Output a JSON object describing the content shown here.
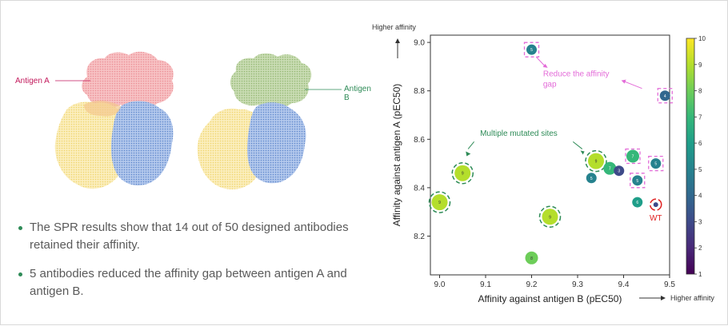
{
  "labels": {
    "antigen_a": "Antigen A",
    "antigen_b": "Antigen B"
  },
  "bullets": [
    "The SPR results show that 14 out of 50 designed antibodies retained their affinity.",
    "5 antibodies reduced the affinity gap between antigen A and antigen B."
  ],
  "colors": {
    "antigen_a": "#f4a3a8",
    "antigen_b": "#a9c98e",
    "chain_yellow": "#f7e08c",
    "chain_blue": "#6f98d8",
    "accent_pink": "#e36bd8",
    "accent_green": "#2e8b57",
    "wt_red": "#e02020"
  },
  "chart_data": {
    "type": "scatter",
    "xlabel": "Affinity against antigen B (pEC50)",
    "ylabel": "Affinity against antigen A (pEC50)",
    "x_arrow_label": "Higher affinity",
    "y_arrow_label": "Higher affinity",
    "xlim": [
      8.98,
      9.5
    ],
    "ylim": [
      8.04,
      9.03
    ],
    "xticks": [
      9.0,
      9.1,
      9.2,
      9.3,
      9.4,
      9.5
    ],
    "yticks": [
      8.2,
      8.4,
      8.6,
      8.8,
      9.0
    ],
    "colorbar": {
      "min": 1,
      "max": 10,
      "ticks": [
        1,
        2,
        3,
        4,
        5,
        6,
        7,
        8,
        9,
        10
      ],
      "colormap": "viridis"
    },
    "points": [
      {
        "x": 9.2,
        "y": 8.97,
        "value": 5,
        "marker": "pink-square"
      },
      {
        "x": 9.49,
        "y": 8.78,
        "value": 4,
        "marker": "pink-square"
      },
      {
        "x": 9.42,
        "y": 8.53,
        "value": 7,
        "marker": "pink-square"
      },
      {
        "x": 9.47,
        "y": 8.5,
        "value": 5,
        "marker": "pink-square"
      },
      {
        "x": 9.43,
        "y": 8.43,
        "value": 5,
        "marker": "pink-square"
      },
      {
        "x": 9.05,
        "y": 8.46,
        "value": 9,
        "marker": "green-circle"
      },
      {
        "x": 9.0,
        "y": 8.34,
        "value": 9,
        "marker": "green-circle"
      },
      {
        "x": 9.24,
        "y": 8.28,
        "value": 9,
        "marker": "green-circle"
      },
      {
        "x": 9.34,
        "y": 8.51,
        "value": 9,
        "marker": "green-circle"
      },
      {
        "x": 9.37,
        "y": 8.48,
        "value": 7,
        "marker": "none"
      },
      {
        "x": 9.39,
        "y": 8.47,
        "value": 3,
        "marker": "none"
      },
      {
        "x": 9.33,
        "y": 8.44,
        "value": 5,
        "marker": "none"
      },
      {
        "x": 9.43,
        "y": 8.34,
        "value": 6,
        "marker": "none"
      },
      {
        "x": 9.2,
        "y": 8.11,
        "value": 8,
        "marker": "none"
      },
      {
        "x": 9.47,
        "y": 8.33,
        "value": 3,
        "marker": "wt"
      }
    ],
    "annotations": {
      "reduce_gap": "Reduce the affinity\ngap",
      "multiple_sites": "Multiple mutated sites",
      "wt": "WT"
    }
  }
}
